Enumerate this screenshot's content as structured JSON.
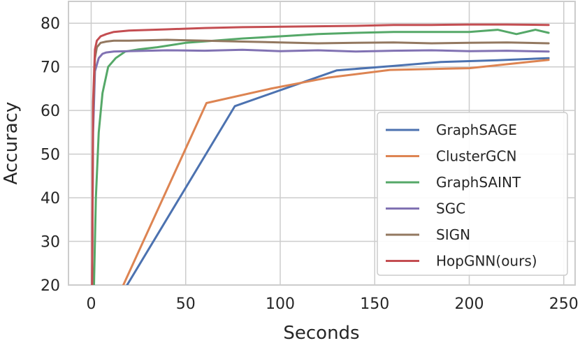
{
  "chart_data": {
    "type": "line",
    "title": "",
    "xlabel": "Seconds",
    "ylabel": "Accuracy",
    "xlim": [
      -12,
      256
    ],
    "ylim": [
      20,
      85
    ],
    "xticks": [
      0,
      50,
      100,
      150,
      200,
      250
    ],
    "yticks": [
      20,
      30,
      40,
      50,
      60,
      70,
      80
    ],
    "grid": true,
    "legend_position": "lower-right",
    "series": [
      {
        "name": "GraphSAGE",
        "color": "#4c72b0",
        "x": [
          19,
          76,
          130,
          160,
          185,
          215,
          242
        ],
        "y": [
          20,
          61,
          69.2,
          70.2,
          71.1,
          71.5,
          72.0
        ]
      },
      {
        "name": "ClusterGCN",
        "color": "#dd8452",
        "x": [
          17,
          61,
          95,
          125,
          158,
          200,
          242
        ],
        "y": [
          20,
          61.7,
          65.0,
          67.5,
          69.3,
          69.7,
          71.6
        ]
      },
      {
        "name": "GraphSAINT",
        "color": "#55a868",
        "x": [
          1.5,
          2.5,
          4,
          6,
          9,
          13,
          18,
          25,
          35,
          50,
          65,
          80,
          100,
          120,
          140,
          160,
          180,
          200,
          215,
          225,
          235,
          242
        ],
        "y": [
          20,
          40,
          55,
          64,
          70,
          72,
          73.5,
          74,
          74.5,
          75.5,
          76,
          76.5,
          77,
          77.5,
          77.8,
          78,
          78,
          78,
          78.5,
          77.5,
          78.5,
          77.8
        ]
      },
      {
        "name": "SGC",
        "color": "#8172b3",
        "x": [
          0.5,
          1,
          2,
          4,
          6,
          8,
          12,
          20,
          40,
          60,
          80,
          100,
          120,
          140,
          160,
          180,
          200,
          220,
          242
        ],
        "y": [
          20,
          55,
          69,
          72,
          73,
          73.3,
          73.5,
          73.6,
          73.8,
          73.7,
          73.9,
          73.6,
          73.8,
          73.5,
          73.7,
          73.8,
          73.6,
          73.7,
          73.5
        ]
      },
      {
        "name": "SIGN",
        "color": "#937860",
        "x": [
          0.5,
          1,
          2,
          3,
          5,
          8,
          12,
          20,
          40,
          60,
          80,
          100,
          120,
          140,
          160,
          180,
          200,
          220,
          242
        ],
        "y": [
          20,
          60,
          72,
          74.5,
          75.5,
          75.8,
          76,
          76,
          76.2,
          76,
          75.8,
          75.6,
          75.4,
          75.5,
          75.6,
          75.4,
          75.5,
          75.6,
          75.4
        ]
      },
      {
        "name": "HopGNN(ours)",
        "color": "#c44e52",
        "x": [
          0.5,
          1,
          2,
          3,
          5,
          8,
          12,
          20,
          40,
          60,
          80,
          100,
          120,
          140,
          160,
          180,
          200,
          220,
          242
        ],
        "y": [
          20,
          62,
          74,
          76,
          77,
          77.5,
          78,
          78.3,
          78.6,
          78.9,
          79.1,
          79.2,
          79.3,
          79.4,
          79.6,
          79.6,
          79.7,
          79.7,
          79.6
        ]
      }
    ]
  }
}
